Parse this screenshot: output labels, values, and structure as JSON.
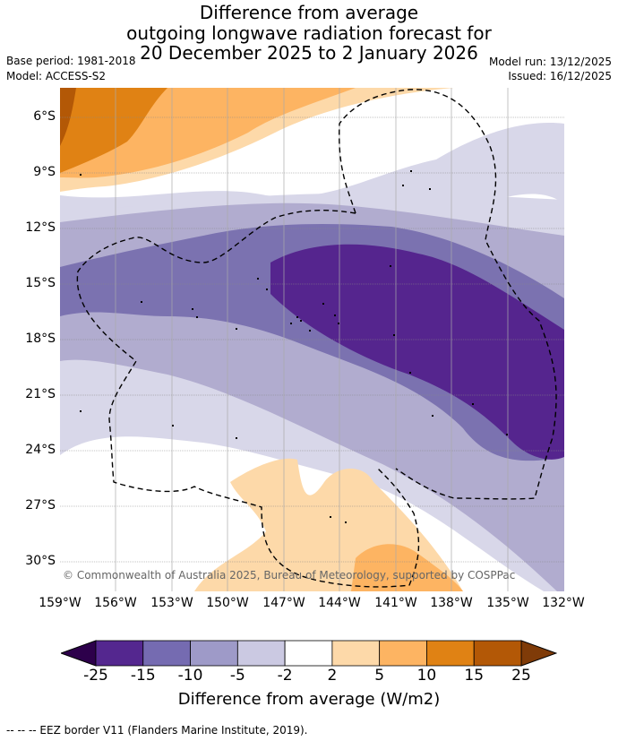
{
  "title": {
    "line1": "Difference from average",
    "line2": "outgoing longwave radiation forecast for",
    "line3": "20 December 2025 to 2 January 2026"
  },
  "meta": {
    "base_period": "Base period: 1981-2018",
    "model": "Model: ACCESS-S2",
    "model_run": "Model run: 13/12/2025",
    "issued": "Issued: 16/12/2025"
  },
  "map": {
    "latitude_labels": [
      "6°S",
      "9°S",
      "12°S",
      "15°S",
      "18°S",
      "21°S",
      "24°S",
      "27°S",
      "30°S"
    ],
    "longitude_labels": [
      "159°W",
      "156°W",
      "153°W",
      "150°W",
      "147°W",
      "144°W",
      "141°W",
      "138°W",
      "135°W",
      "132°W"
    ],
    "copyright": "© Commonwealth of Australia 2025, Bureau of Meteorology, supported by COSPPac"
  },
  "colorbar": {
    "label": "Difference from average (W/m2)",
    "ticks": [
      "-25",
      "-15",
      "-10",
      "-5",
      "-2",
      "2",
      "5",
      "10",
      "15",
      "25"
    ],
    "colors": [
      "#54278f",
      "#756bb1",
      "#9e9ac8",
      "#cbc9e2",
      "#ffffff",
      "#fdd9a9",
      "#fdb462",
      "#e08214",
      "#b35806"
    ],
    "under_color": "#2d004b",
    "over_color": "#7f3b08"
  },
  "footer": "--  --  -- EEZ border V11 (Flanders Marine Institute, 2019)."
}
